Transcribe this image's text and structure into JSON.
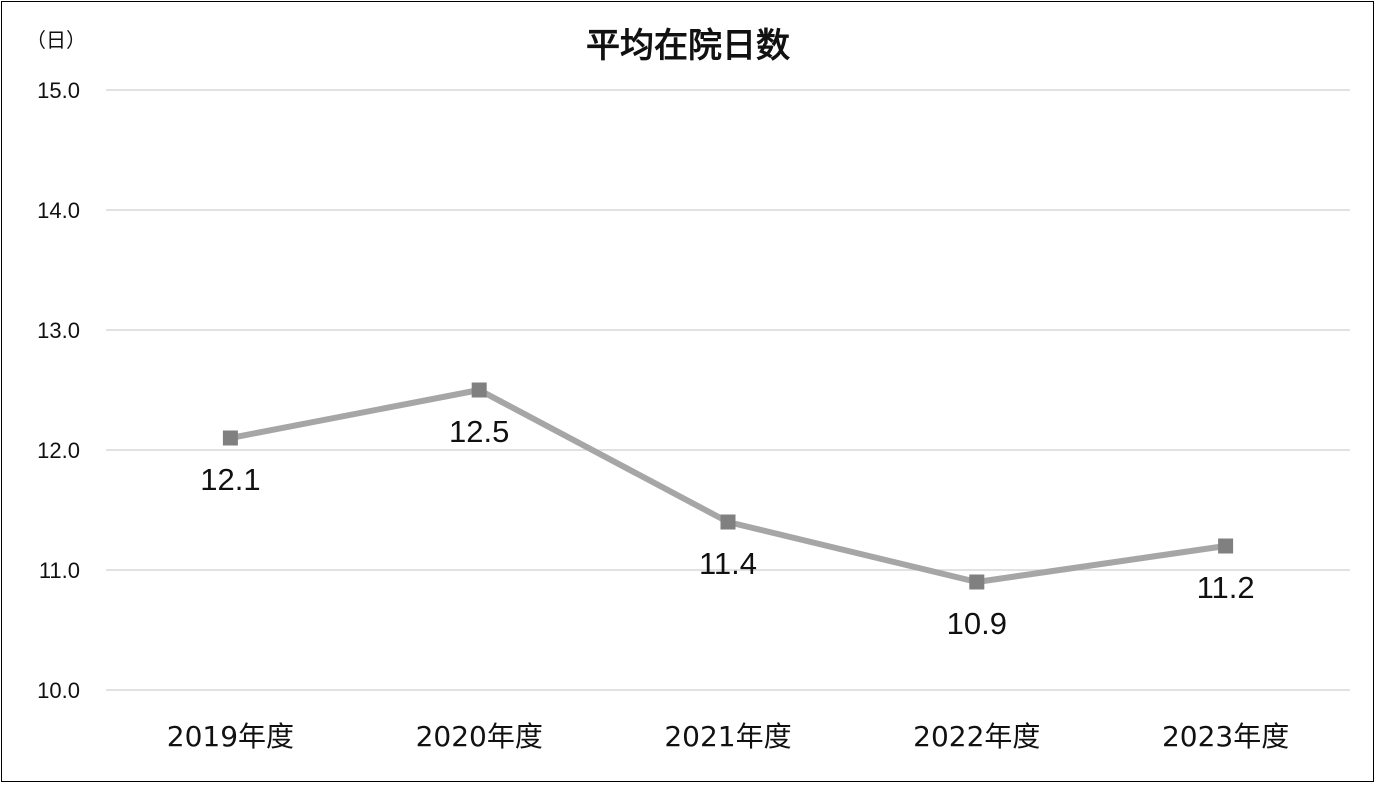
{
  "chart_data": {
    "type": "line",
    "title": "平均在院日数",
    "unit_label": "（日）",
    "categories": [
      "2019年度",
      "2020年度",
      "2021年度",
      "2022年度",
      "2023年度"
    ],
    "series": [
      {
        "values": [
          12.1,
          12.5,
          11.4,
          10.9,
          11.2
        ],
        "labels": [
          "12.1",
          "12.5",
          "11.4",
          "10.9",
          "11.2"
        ],
        "color": "#a6a6a6",
        "marker_color": "#808080",
        "marker": "square"
      }
    ],
    "ylim": [
      10.0,
      15.0
    ],
    "yticks": [
      "10.0",
      "11.0",
      "12.0",
      "13.0",
      "14.0",
      "15.0"
    ],
    "grid": true,
    "grid_color": "#d9d9d9",
    "legend": "none"
  }
}
